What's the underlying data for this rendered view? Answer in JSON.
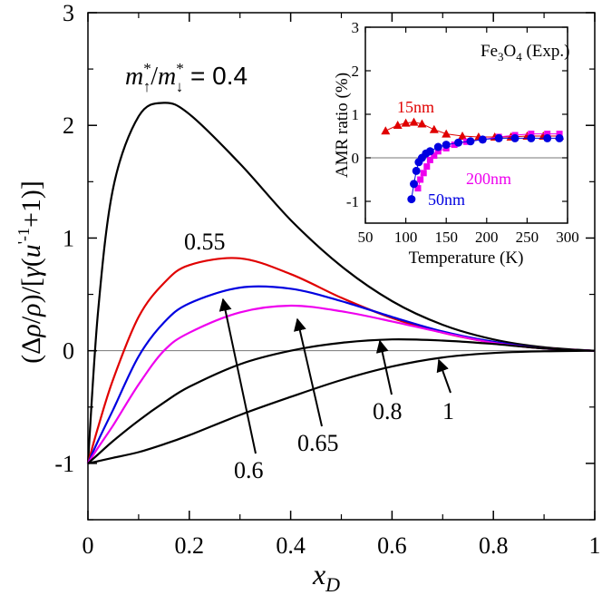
{
  "chart_data": [
    {
      "type": "line",
      "title": "",
      "xlabel": "x_D",
      "ylabel": "(Δρ/ρ)/[γ(u'^-1+1)]",
      "xlim": [
        0,
        1
      ],
      "ylim": [
        -1.5,
        3
      ],
      "xticks": [
        "0",
        "0.2",
        "0.4",
        "0.6",
        "0.8",
        "1"
      ],
      "yticks": [
        "-1",
        "0",
        "1",
        "2",
        "3"
      ],
      "annotation": "m*↑/m*↓ = 0.4",
      "x": [
        0,
        0.02,
        0.05,
        0.1,
        0.15,
        0.2,
        0.3,
        0.4,
        0.5,
        0.6,
        0.7,
        0.8,
        0.9,
        1.0
      ],
      "series": [
        {
          "name": "0.4",
          "label": "",
          "color": "#000000",
          "values": [
            -1.0,
            0.35,
            1.45,
            2.08,
            2.2,
            2.1,
            1.66,
            1.16,
            0.75,
            0.44,
            0.23,
            0.1,
            0.03,
            0.0
          ]
        },
        {
          "name": "0.55",
          "label": "0.55",
          "color": "#e00000",
          "values": [
            -1.0,
            -0.68,
            -0.25,
            0.3,
            0.6,
            0.76,
            0.82,
            0.68,
            0.47,
            0.29,
            0.16,
            0.07,
            0.02,
            0.0
          ]
        },
        {
          "name": "0.6",
          "label": "0.6",
          "color": "#0000e0",
          "values": [
            -1.0,
            -0.8,
            -0.52,
            -0.05,
            0.25,
            0.42,
            0.56,
            0.55,
            0.44,
            0.3,
            0.17,
            0.08,
            0.02,
            0.0
          ]
        },
        {
          "name": "0.65",
          "label": "0.65",
          "color": "#ee00ee",
          "values": [
            -1.0,
            -0.86,
            -0.66,
            -0.3,
            0.0,
            0.16,
            0.34,
            0.4,
            0.35,
            0.26,
            0.16,
            0.07,
            0.02,
            0.0
          ]
        },
        {
          "name": "0.8",
          "label": "0.8",
          "color": "#000000",
          "values": [
            -1.0,
            -0.92,
            -0.8,
            -0.62,
            -0.46,
            -0.32,
            -0.12,
            0.0,
            0.07,
            0.1,
            0.09,
            0.06,
            0.02,
            0.0
          ]
        },
        {
          "name": "1",
          "label": "1",
          "color": "#000000",
          "values": [
            -1.0,
            -0.98,
            -0.95,
            -0.9,
            -0.83,
            -0.75,
            -0.57,
            -0.41,
            -0.26,
            -0.14,
            -0.06,
            -0.02,
            -0.005,
            0.0
          ]
        }
      ]
    },
    {
      "type": "scatter",
      "title": "Fe3O4 (Exp.)",
      "xlabel": "Temperature (K)",
      "ylabel": "AMR ratio (%)",
      "xlim": [
        50,
        300
      ],
      "ylim": [
        -1.5,
        3
      ],
      "xticks": [
        "50",
        "100",
        "150",
        "200",
        "250",
        "300"
      ],
      "yticks": [
        "-1",
        "0",
        "1",
        "2",
        "3"
      ],
      "series": [
        {
          "name": "15nm",
          "color": "#e00000",
          "marker": "triangle",
          "x": [
            75,
            90,
            100,
            110,
            120,
            135,
            150,
            170,
            190,
            210,
            230,
            250,
            270,
            290
          ],
          "values": [
            0.62,
            0.75,
            0.8,
            0.82,
            0.78,
            0.65,
            0.55,
            0.5,
            0.48,
            0.48,
            0.48,
            0.5,
            0.5,
            0.5
          ]
        },
        {
          "name": "200nm",
          "color": "#ee00ee",
          "marker": "square",
          "x": [
            115,
            118,
            122,
            126,
            130,
            135,
            140,
            150,
            160,
            175,
            195,
            215,
            235,
            255,
            275,
            290
          ],
          "values": [
            -0.7,
            -0.5,
            -0.35,
            -0.2,
            -0.05,
            0.05,
            0.15,
            0.22,
            0.3,
            0.37,
            0.42,
            0.48,
            0.52,
            0.55,
            0.55,
            0.55
          ]
        },
        {
          "name": "50nm",
          "color": "#0000e0",
          "marker": "circle",
          "x": [
            107,
            110,
            113,
            116,
            120,
            125,
            130,
            140,
            150,
            165,
            180,
            195,
            215,
            235,
            255,
            275,
            290
          ],
          "values": [
            -0.95,
            -0.6,
            -0.3,
            -0.1,
            0.0,
            0.1,
            0.15,
            0.25,
            0.3,
            0.35,
            0.38,
            0.42,
            0.45,
            0.45,
            0.45,
            0.45,
            0.45
          ]
        }
      ]
    }
  ]
}
